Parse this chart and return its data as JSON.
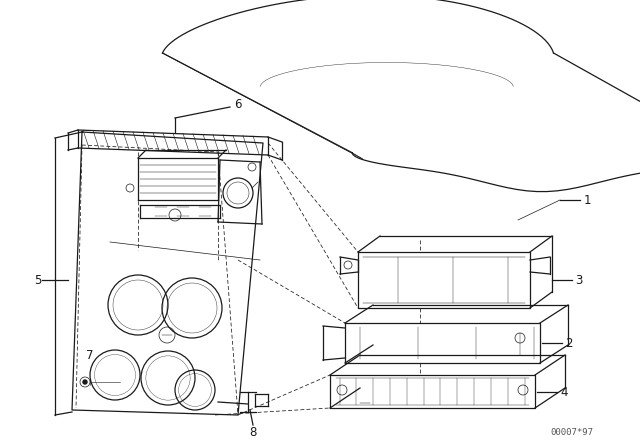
{
  "bg_color": "#ffffff",
  "line_color": "#1a1a1a",
  "watermark": "00007*97",
  "label_fontsize": 8.5,
  "watermark_fontsize": 6.5,
  "fig_width": 6.4,
  "fig_height": 4.48,
  "dpi": 100
}
